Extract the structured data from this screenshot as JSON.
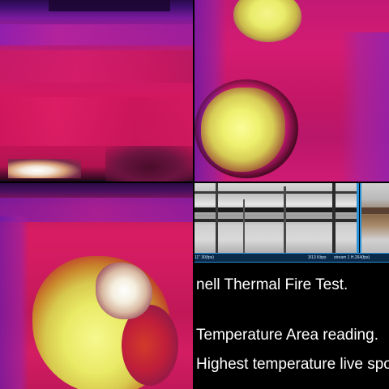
{
  "thermal_views": {
    "top_left": {
      "label": "thermal-view-top-left"
    },
    "top_right": {
      "label": "thermal-view-top-right"
    },
    "bottom_left": {
      "label": "thermal-view-bottom-left"
    }
  },
  "camera": {
    "status_left": "11\" 30(fps)",
    "status_mid": "3/13 Kbps",
    "status_right": "stream 1 H.264(fps)"
  },
  "captions": {
    "line1": "nell Thermal Fire Test.",
    "line2": "Temperature Area reading.",
    "line3": "Highest temperature live spot"
  },
  "colors": {
    "background": "#000000",
    "accent": "#2a90d8",
    "text": "#ffffff"
  }
}
